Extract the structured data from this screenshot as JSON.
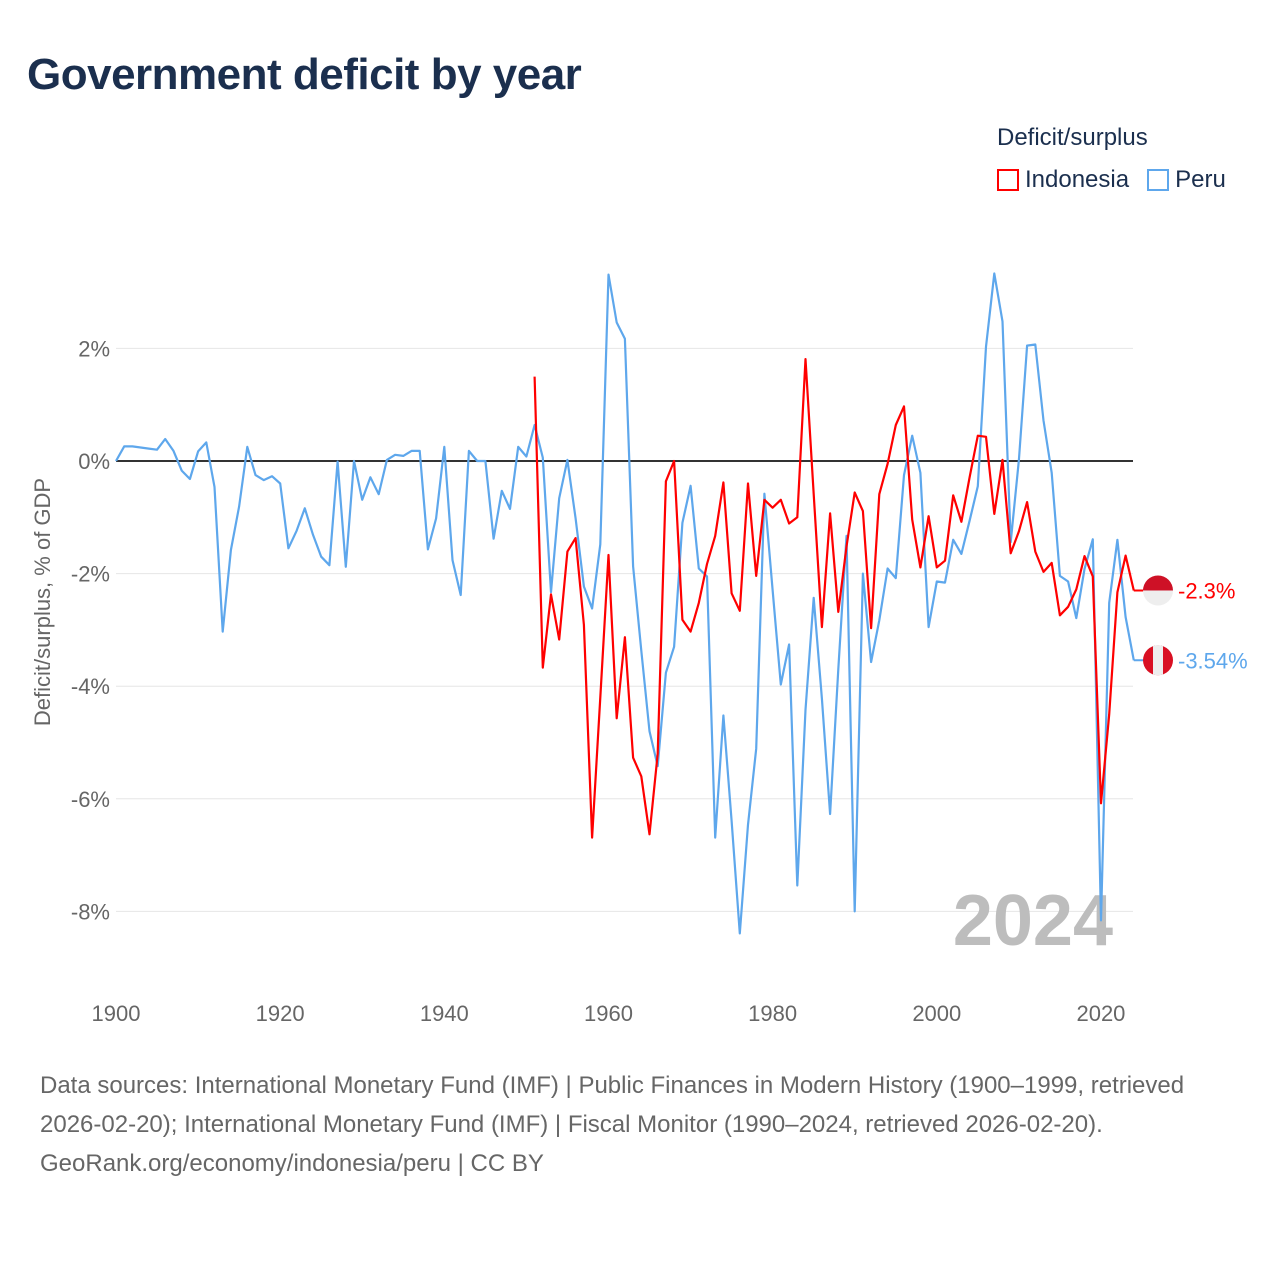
{
  "title": "Government deficit by year",
  "legend": {
    "title": "Deficit/surplus",
    "items": [
      {
        "name": "Indonesia",
        "color": "#ff0000"
      },
      {
        "name": "Peru",
        "color": "#5ea7ec"
      }
    ]
  },
  "footer": {
    "sources": "Data sources: International Monetary Fund (IMF) | Public Finances in Modern History (1900–1999, retrieved 2026-02-20); International Monetary Fund (IMF) | Fiscal Monitor (1990–2024, retrieved 2026-02-20).",
    "credit": "GeoRank.org/economy/indonesia/peru | CC BY"
  },
  "chart_data": {
    "type": "line",
    "title": "Government deficit by year",
    "xlabel": "",
    "ylabel": "Deficit/surplus, % of GDP",
    "xlim": [
      1900,
      2024
    ],
    "ylim": [
      -9,
      3.5
    ],
    "xticks": [
      1900,
      1920,
      1940,
      1960,
      1980,
      2000,
      2020
    ],
    "yticks": [
      {
        "v": 2,
        "label": "2%"
      },
      {
        "v": 0,
        "label": "0%"
      },
      {
        "v": -2,
        "label": "-2%"
      },
      {
        "v": -4,
        "label": "-4%"
      },
      {
        "v": -6,
        "label": "-6%"
      },
      {
        "v": -8,
        "label": "-8%"
      }
    ],
    "year_watermark": "2024",
    "series": [
      {
        "name": "Indonesia",
        "color": "#ff0000",
        "start": 1951,
        "end_label": "-2.3%",
        "values": [
          1.5,
          -3.67,
          -2.37,
          -3.17,
          -1.61,
          -1.37,
          -2.91,
          -6.69,
          -4.2,
          -1.67,
          -4.57,
          -3.13,
          -5.27,
          -5.6,
          -6.63,
          -5.2,
          -0.36,
          0,
          -2.82,
          -3.03,
          -2.52,
          -1.83,
          -1.33,
          -0.38,
          -2.35,
          -2.66,
          -0.4,
          -2.04,
          -0.69,
          -0.83,
          -0.69,
          -1.11,
          -1.0,
          1.81,
          -0.59,
          -2.95,
          -0.93,
          -2.68,
          -1.52,
          -0.56,
          -0.89,
          -2.97,
          -0.59,
          -0.05,
          0.64,
          0.97,
          -1.04,
          -1.89,
          -0.98,
          -1.89,
          -1.77,
          -0.61,
          -1.08,
          -0.29,
          0.45,
          0.43,
          -0.94,
          0.02,
          -1.64,
          -1.25,
          -0.73,
          -1.61,
          -1.97,
          -1.81,
          -2.74,
          -2.59,
          -2.28,
          -1.69,
          -2.05,
          -6.08,
          -4.5,
          -2.33,
          -1.68,
          -2.3
        ]
      },
      {
        "name": "Peru",
        "color": "#5ea7ec",
        "start": 1900,
        "end_label": "-3.54%",
        "values": [
          0,
          0.26,
          0.26,
          0.24,
          0.22,
          0.2,
          0.39,
          0.18,
          -0.17,
          -0.32,
          0.17,
          0.33,
          -0.46,
          -3.03,
          -1.58,
          -0.81,
          0.25,
          -0.25,
          -0.34,
          -0.27,
          -0.4,
          -1.55,
          -1.24,
          -0.84,
          -1.31,
          -1.7,
          -1.85,
          -0.01,
          -1.88,
          0,
          -0.69,
          -0.29,
          -0.59,
          0.02,
          0.11,
          0.09,
          0.18,
          0.18,
          -1.57,
          -1.02,
          0.25,
          -1.76,
          -2.38,
          0.18,
          0,
          0,
          -1.38,
          -0.53,
          -0.85,
          0.25,
          0.08,
          0.64,
          0.06,
          -2.33,
          -0.66,
          0.02,
          -1.02,
          -2.23,
          -2.62,
          -1.48,
          3.31,
          2.46,
          2.17,
          -1.87,
          -3.37,
          -4.8,
          -5.42,
          -3.76,
          -3.3,
          -1.1,
          -0.44,
          -1.91,
          -2.05,
          -6.69,
          -4.52,
          -6.39,
          -8.39,
          -6.46,
          -5.11,
          -0.58,
          -2.29,
          -3.97,
          -3.26,
          -7.54,
          -4.42,
          -2.43,
          -4.22,
          -6.27,
          -3.7,
          -1.33,
          -8.0,
          -2.0,
          -3.57,
          -2.83,
          -1.91,
          -2.08,
          -0.25,
          0.45,
          -0.21,
          -2.95,
          -2.14,
          -2.16,
          -1.4,
          -1.65,
          -1.06,
          -0.45,
          2.03,
          3.33,
          2.48,
          -1.44,
          0.02,
          2.05,
          2.07,
          0.72,
          -0.21,
          -2.04,
          -2.14,
          -2.79,
          -1.92,
          -1.39,
          -8.16,
          -2.52,
          -1.4,
          -2.77,
          -3.54
        ]
      }
    ]
  }
}
